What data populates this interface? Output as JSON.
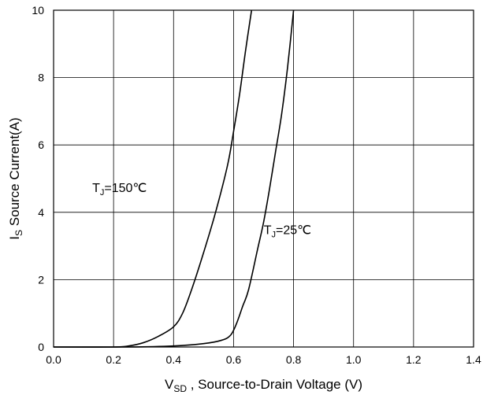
{
  "chart_data": {
    "type": "line",
    "xlim": [
      0.0,
      1.4
    ],
    "ylim": [
      0,
      10
    ],
    "x_ticks": [
      "0.0",
      "0.2",
      "0.4",
      "0.6",
      "0.8",
      "1.0",
      "1.2",
      "1.4"
    ],
    "y_ticks": [
      "0",
      "2",
      "4",
      "6",
      "8",
      "10"
    ],
    "xlabel": {
      "main": "V",
      "sub": "SD",
      "rest": " , Source-to-Drain Voltage (V)"
    },
    "ylabel": {
      "main": "I",
      "sub": "S",
      "rest": " Source Current(A)"
    },
    "grid": true,
    "series": [
      {
        "name": "TJ=150℃",
        "label_main": "T",
        "label_sub": "J",
        "label_rest": "=150℃",
        "color": "#000000",
        "x": [
          0.0,
          0.2,
          0.25,
          0.3,
          0.35,
          0.4,
          0.43,
          0.46,
          0.5,
          0.54,
          0.58,
          0.6,
          0.62,
          0.64,
          0.66
        ],
        "y": [
          0.0,
          0.0,
          0.03,
          0.13,
          0.32,
          0.6,
          1.0,
          1.7,
          2.8,
          4.0,
          5.4,
          6.4,
          7.5,
          8.8,
          10.0
        ]
      },
      {
        "name": "TJ=25℃",
        "label_main": "T",
        "label_sub": "J",
        "label_rest": "=25℃",
        "color": "#000000",
        "x": [
          0.0,
          0.25,
          0.4,
          0.5,
          0.56,
          0.59,
          0.61,
          0.63,
          0.65,
          0.68,
          0.7,
          0.72,
          0.74,
          0.76,
          0.78,
          0.8
        ],
        "y": [
          0.0,
          0.0,
          0.03,
          0.1,
          0.2,
          0.35,
          0.7,
          1.2,
          1.7,
          2.9,
          3.7,
          4.7,
          5.8,
          6.9,
          8.3,
          10.0
        ]
      }
    ]
  }
}
